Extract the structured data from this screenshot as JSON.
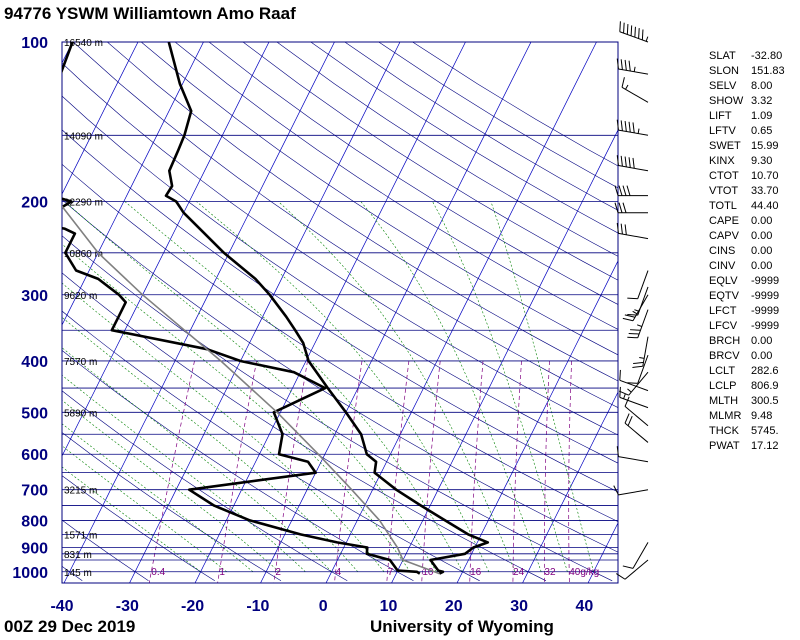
{
  "header": {
    "title": "94776 YSWM Williamtown Amo Raaf"
  },
  "footer": {
    "left": "00Z 29 Dec 2019",
    "right": "University of Wyoming"
  },
  "chart_data": {
    "type": "skew-t",
    "x_axis": {
      "ticks": [
        "-40",
        "-30",
        "-20",
        "-10",
        "0",
        "10",
        "20",
        "30",
        "40"
      ],
      "range": [
        -40,
        45
      ]
    },
    "y_axis": {
      "ticks": [
        "100",
        "200",
        "300",
        "400",
        "500",
        "600",
        "700",
        "800",
        "900",
        "1000"
      ],
      "range": [
        100,
        1050
      ],
      "scale": "log-pressure"
    },
    "height_labels": [
      {
        "p": 100,
        "text": "16540 m"
      },
      {
        "p": 150,
        "text": "14090 m"
      },
      {
        "p": 200,
        "text": "12290 m"
      },
      {
        "p": 250,
        "text": "10860 m"
      },
      {
        "p": 300,
        "text": "9620 m"
      },
      {
        "p": 400,
        "text": "7570 m"
      },
      {
        "p": 500,
        "text": "5890 m"
      },
      {
        "p": 700,
        "text": "3215 m"
      },
      {
        "p": 850,
        "text": "1571 m"
      },
      {
        "p": 925,
        "text": "831 m"
      },
      {
        "p": 1000,
        "text": "145 m"
      }
    ],
    "mixing_ratio_labels": [
      "0.4",
      "1",
      "2",
      "4",
      "7",
      "10",
      "16",
      "24",
      "32",
      "40g/kg"
    ],
    "series": [
      {
        "role": "temperature",
        "color": "#000000",
        "points": [
          [
            1008,
            16.6
          ],
          [
            1000,
            17.0
          ],
          [
            995,
            16.2
          ],
          [
            950,
            14.2
          ],
          [
            925,
            19.0
          ],
          [
            900,
            19.8
          ],
          [
            880,
            21.6
          ],
          [
            850,
            18.0
          ],
          [
            800,
            13.4
          ],
          [
            750,
            8.6
          ],
          [
            700,
            3.6
          ],
          [
            650,
            -1.0
          ],
          [
            620,
            -1.6
          ],
          [
            600,
            -3.6
          ],
          [
            550,
            -6.0
          ],
          [
            500,
            -10.0
          ],
          [
            450,
            -14.6
          ],
          [
            400,
            -19.6
          ],
          [
            370,
            -21.8
          ],
          [
            350,
            -24.0
          ],
          [
            330,
            -26.4
          ],
          [
            300,
            -30.6
          ],
          [
            280,
            -34.0
          ],
          [
            250,
            -40.8
          ],
          [
            230,
            -45.2
          ],
          [
            210,
            -50.0
          ],
          [
            200,
            -52.0
          ],
          [
            195,
            -54.0
          ],
          [
            187,
            -53.8
          ],
          [
            175,
            -55.4
          ],
          [
            160,
            -55.6
          ],
          [
            150,
            -55.8
          ],
          [
            135,
            -56.6
          ],
          [
            120,
            -60.4
          ],
          [
            100,
            -65.3
          ]
        ]
      },
      {
        "role": "dewpoint",
        "color": "#000000",
        "points": [
          [
            1008,
            13.6
          ],
          [
            1000,
            13.0
          ],
          [
            995,
            10.0
          ],
          [
            950,
            8.0
          ],
          [
            925,
            4.0
          ],
          [
            900,
            3.6
          ],
          [
            880,
            -1.4
          ],
          [
            850,
            -7.6
          ],
          [
            800,
            -16.4
          ],
          [
            750,
            -23.0
          ],
          [
            700,
            -28.0
          ],
          [
            650,
            -10.0
          ],
          [
            620,
            -12.0
          ],
          [
            600,
            -17.0
          ],
          [
            550,
            -18.0
          ],
          [
            500,
            -21.0
          ],
          [
            450,
            -15.0
          ],
          [
            420,
            -21.0
          ],
          [
            400,
            -30.0
          ],
          [
            380,
            -36.0
          ],
          [
            350,
            -52.0
          ],
          [
            330,
            -52.0
          ],
          [
            310,
            -52.0
          ],
          [
            300,
            -53.6
          ],
          [
            280,
            -58.0
          ],
          [
            270,
            -62.0
          ],
          [
            250,
            -65.0
          ],
          [
            230,
            -65.0
          ],
          [
            225,
            -67.0
          ],
          [
            220,
            -72.0
          ],
          [
            210,
            -70.0
          ],
          [
            200,
            -68.0
          ],
          [
            190,
            -75.0
          ],
          [
            150,
            -76.0
          ],
          [
            125,
            -79.0
          ],
          [
            100,
            -80.0
          ]
        ]
      },
      {
        "role": "parcel",
        "color": "#808080",
        "points": [
          [
            1008,
            16.6
          ],
          [
            950,
            10.0
          ],
          [
            900,
            8.2
          ],
          [
            800,
            3.4
          ],
          [
            700,
            -3.2
          ],
          [
            600,
            -11.0
          ],
          [
            500,
            -20.5
          ],
          [
            400,
            -33.0
          ],
          [
            300,
            -50.0
          ],
          [
            250,
            -60.0
          ],
          [
            200,
            -70.0
          ],
          [
            150,
            -82.0
          ],
          [
            100,
            -98.0
          ]
        ]
      }
    ],
    "wind_barbs": [
      {
        "p": 100,
        "dir": 290,
        "spd": 75
      },
      {
        "p": 115,
        "dir": 280,
        "spd": 45
      },
      {
        "p": 130,
        "dir": 300,
        "spd": 15
      },
      {
        "p": 150,
        "dir": 280,
        "spd": 55
      },
      {
        "p": 175,
        "dir": 280,
        "spd": 50
      },
      {
        "p": 195,
        "dir": 270,
        "spd": 40
      },
      {
        "p": 210,
        "dir": 270,
        "spd": 30
      },
      {
        "p": 235,
        "dir": 280,
        "spd": 30
      },
      {
        "p": 270,
        "dir": 200,
        "spd": 10
      },
      {
        "p": 290,
        "dir": 200,
        "spd": 15
      },
      {
        "p": 300,
        "dir": 210,
        "spd": 25
      },
      {
        "p": 320,
        "dir": 200,
        "spd": 35
      },
      {
        "p": 360,
        "dir": 190,
        "spd": 25
      },
      {
        "p": 390,
        "dir": 200,
        "spd": 10
      },
      {
        "p": 420,
        "dir": 220,
        "spd": 15
      },
      {
        "p": 455,
        "dir": 290,
        "spd": 10
      },
      {
        "p": 490,
        "dir": 290,
        "spd": 15
      },
      {
        "p": 530,
        "dir": 310,
        "spd": 10
      },
      {
        "p": 570,
        "dir": 310,
        "spd": 20
      },
      {
        "p": 620,
        "dir": 280,
        "spd": 10
      },
      {
        "p": 700,
        "dir": 260,
        "spd": 10
      },
      {
        "p": 880,
        "dir": 210,
        "spd": 10
      },
      {
        "p": 950,
        "dir": 230,
        "spd": 10
      }
    ],
    "stations_indices": [
      {
        "name": "SLAT",
        "value": "-32.80"
      },
      {
        "name": "SLON",
        "value": "151.83"
      },
      {
        "name": "SELV",
        "value": "8.00"
      },
      {
        "name": "SHOW",
        "value": "3.32"
      },
      {
        "name": "LIFT",
        "value": "1.09"
      },
      {
        "name": "LFTV",
        "value": "0.65"
      },
      {
        "name": "SWET",
        "value": "15.99"
      },
      {
        "name": "KINX",
        "value": "9.30"
      },
      {
        "name": "CTOT",
        "value": "10.70"
      },
      {
        "name": "VTOT",
        "value": "33.70"
      },
      {
        "name": "TOTL",
        "value": "44.40"
      },
      {
        "name": "CAPE",
        "value": "0.00"
      },
      {
        "name": "CAPV",
        "value": "0.00"
      },
      {
        "name": "CINS",
        "value": "0.00"
      },
      {
        "name": "CINV",
        "value": "0.00"
      },
      {
        "name": "EQLV",
        "value": "-9999"
      },
      {
        "name": "EQTV",
        "value": "-9999"
      },
      {
        "name": "LFCT",
        "value": "-9999"
      },
      {
        "name": "LFCV",
        "value": "-9999"
      },
      {
        "name": "BRCH",
        "value": "0.00"
      },
      {
        "name": "BRCV",
        "value": "0.00"
      },
      {
        "name": "LCLT",
        "value": "282.6"
      },
      {
        "name": "LCLP",
        "value": "806.9"
      },
      {
        "name": "MLTH",
        "value": "300.5"
      },
      {
        "name": "MLMR",
        "value": "9.48"
      },
      {
        "name": "THCK",
        "value": "5745."
      },
      {
        "name": "PWAT",
        "value": "17.12"
      }
    ],
    "colors": {
      "isobar": "#00007f",
      "isotherm": "#0000c0",
      "dry_adiabat": "#00007f",
      "moist_adiabat": "#008000",
      "mixing_ratio": "#800080",
      "axis_label": "#00007f"
    }
  }
}
